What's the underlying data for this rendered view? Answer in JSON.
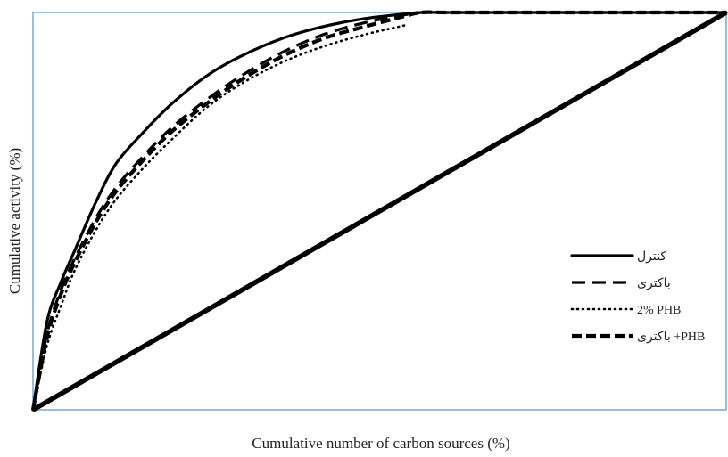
{
  "chart_data": {
    "type": "line",
    "title": "",
    "xlabel": "Cumulative number of carbon sources (%)",
    "ylabel": "Cumulative activity (%)",
    "xlim": [
      0,
      100
    ],
    "ylim": [
      0,
      100
    ],
    "grid": false,
    "legend_position": "right",
    "frame_color": "#5b8fc7",
    "series": [
      {
        "name": "کنترل",
        "style": "solid",
        "color": "#000000",
        "x": [
          0,
          2,
          4,
          6,
          9,
          12,
          16,
          20,
          25,
          30,
          36,
          42,
          48,
          53,
          56,
          60,
          70,
          80,
          90,
          100
        ],
        "y": [
          0,
          22,
          32,
          40,
          52,
          62,
          70,
          77,
          84,
          89,
          93.5,
          96.5,
          98.5,
          99.5,
          100,
          100,
          100,
          100,
          100,
          100
        ]
      },
      {
        "name": "باکتری",
        "style": "dash",
        "color": "#000000",
        "x": [
          0,
          2,
          4,
          6,
          9,
          12,
          16,
          20,
          25,
          30,
          36,
          42,
          48,
          53,
          56,
          60,
          70,
          80,
          90,
          100
        ],
        "y": [
          0,
          19,
          30,
          38,
          48,
          56,
          64,
          71,
          78,
          84,
          90,
          94.5,
          97.5,
          99.2,
          100,
          100,
          100,
          100,
          100,
          100
        ]
      },
      {
        "name": "2% PHB",
        "style": "dot",
        "color": "#000000",
        "x": [
          0,
          2,
          4,
          6,
          9,
          12,
          16,
          20,
          25,
          30,
          36,
          42,
          48,
          53,
          54
        ],
        "y": [
          0,
          16,
          26,
          35,
          45,
          53,
          61,
          68,
          76,
          82,
          87.5,
          91.5,
          94.5,
          96.5,
          97
        ]
      },
      {
        "name": "باکتری +PHB",
        "style": "dash-bold",
        "color": "#000000",
        "x": [
          0,
          2,
          4,
          6,
          9,
          12,
          16,
          20,
          25,
          30,
          36,
          42,
          48,
          53,
          56,
          60,
          70,
          80,
          90,
          100
        ],
        "y": [
          0,
          18,
          29,
          37,
          47,
          55,
          63,
          70,
          77,
          83,
          89,
          93.5,
          96.5,
          98.8,
          100,
          100,
          100,
          100,
          100,
          100
        ]
      }
    ],
    "reference_line": {
      "x": [
        0,
        100
      ],
      "y": [
        0,
        100
      ],
      "style": "solid-thick",
      "color": "#000000"
    }
  }
}
